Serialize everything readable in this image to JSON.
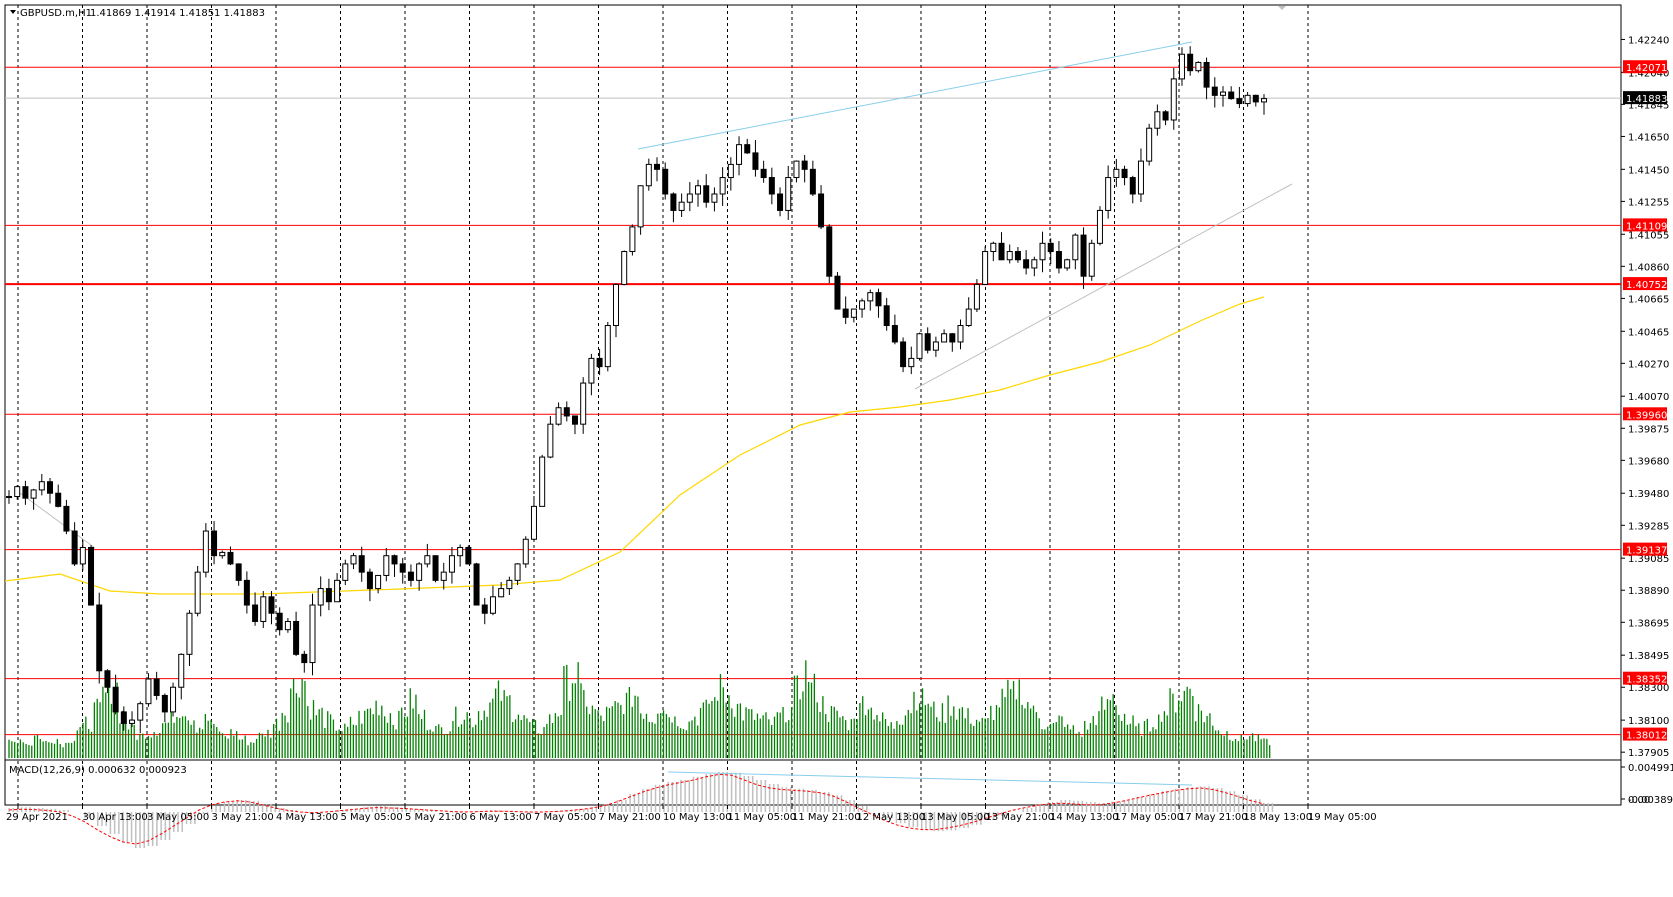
{
  "header": {
    "symbol": "GBPUSD.m,H1",
    "ohlc": "1.41869 1.41914 1.41851 1.41883"
  },
  "macd_header": "MACD(12,26,9) 0.000632 0.000923",
  "colors": {
    "level_line": "#ff0000",
    "level_label_bg": "#ff0000",
    "ma": "#ffd700",
    "volume": "#008000",
    "candle": "#000000",
    "trendline": "#87ceeb",
    "channel": "#c0c0c0",
    "macd_hist": "#c0c0c0",
    "macd_signal": "#ff0000",
    "grid": "#000000",
    "current_label_bg": "#000000"
  },
  "chart_data": {
    "type": "candlestick",
    "title": "GBPUSD.m,H1",
    "ylim": [
      1.379,
      1.4234
    ],
    "y_ticks": [
      "1.42240",
      "1.42040",
      "1.41845",
      "1.41650",
      "1.41450",
      "1.41255",
      "1.41055",
      "1.40860",
      "1.40665",
      "1.40465",
      "1.40270",
      "1.40070",
      "1.39875",
      "1.39680",
      "1.39480",
      "1.39285",
      "1.39085",
      "1.38890",
      "1.38695",
      "1.38495",
      "1.38300",
      "1.38100",
      "1.37905"
    ],
    "x_ticks": [
      "29 Apr 2021",
      "30 Apr 13:00",
      "3 May 05:00",
      "3 May 21:00",
      "4 May 13:00",
      "5 May 05:00",
      "5 May 21:00",
      "6 May 13:00",
      "7 May 05:00",
      "7 May 21:00",
      "10 May 13:00",
      "11 May 05:00",
      "11 May 21:00",
      "12 May 13:00",
      "13 May 05:00",
      "13 May 21:00",
      "14 May 13:00",
      "17 May 05:00",
      "17 May 21:00",
      "18 May 13:00",
      "19 May 05:00"
    ],
    "current_price": "1.41883",
    "levels": [
      "1.42071",
      "1.41109",
      "1.40752",
      "1.39960",
      "1.39137",
      "1.38352",
      "1.38012"
    ],
    "close_path": [
      1.3946,
      1.3952,
      1.3945,
      1.395,
      1.3955,
      1.3948,
      1.394,
      1.3925,
      1.3905,
      1.3915,
      1.388,
      1.384,
      1.383,
      1.3815,
      1.3808,
      1.381,
      1.382,
      1.3835,
      1.3825,
      1.3815,
      1.383,
      1.385,
      1.3875,
      1.39,
      1.3925,
      1.391,
      1.3912,
      1.3905,
      1.3895,
      1.388,
      1.387,
      1.3885,
      1.3875,
      1.3865,
      1.387,
      1.385,
      1.3845,
      1.388,
      1.389,
      1.3882,
      1.3895,
      1.3905,
      1.391,
      1.39,
      1.389,
      1.3898,
      1.391,
      1.3905,
      1.39,
      1.3895,
      1.3905,
      1.391,
      1.3895,
      1.39,
      1.391,
      1.3915,
      1.3905,
      1.388,
      1.3875,
      1.3885,
      1.389,
      1.3895,
      1.3905,
      1.392,
      1.394,
      1.397,
      1.399,
      1.4,
      1.3995,
      1.399,
      1.4015,
      1.403,
      1.4025,
      1.405,
      1.4075,
      1.4095,
      1.411,
      1.4135,
      1.4148,
      1.4145,
      1.413,
      1.412,
      1.4125,
      1.413,
      1.4135,
      1.4125,
      1.413,
      1.414,
      1.4148,
      1.416,
      1.4155,
      1.4145,
      1.414,
      1.413,
      1.412,
      1.414,
      1.415,
      1.4145,
      1.413,
      1.411,
      1.408,
      1.406,
      1.4055,
      1.406,
      1.4065,
      1.407,
      1.4062,
      1.405,
      1.404,
      1.4025,
      1.403,
      1.4045,
      1.4035,
      1.404,
      1.4045,
      1.404,
      1.405,
      1.406,
      1.4075,
      1.4095,
      1.41,
      1.409,
      1.4095,
      1.409,
      1.4085,
      1.409,
      1.41,
      1.4095,
      1.4085,
      1.409,
      1.4105,
      1.408,
      1.41,
      1.412,
      1.414,
      1.4145,
      1.414,
      1.413,
      1.415,
      1.417,
      1.418,
      1.4175,
      1.42,
      1.4215,
      1.4205,
      1.421,
      1.4195,
      1.419,
      1.4192,
      1.4188,
      1.4185,
      1.419,
      1.4186,
      1.4188
    ],
    "volume_path": [
      10,
      12,
      9,
      14,
      10,
      12,
      9,
      12,
      18,
      22,
      30,
      40,
      45,
      28,
      20,
      14,
      16,
      18,
      22,
      28,
      32,
      26,
      20,
      24,
      18,
      14,
      16,
      12,
      10,
      14,
      16,
      22,
      30,
      45,
      50,
      32,
      28,
      24,
      20,
      18,
      22,
      26,
      30,
      34,
      28,
      24,
      30,
      36,
      26,
      22,
      18,
      20,
      26,
      28,
      24,
      30,
      34,
      40,
      36,
      30,
      24,
      20,
      18,
      24,
      30,
      48,
      52,
      38,
      30,
      26,
      28,
      32,
      36,
      40,
      30,
      26,
      34,
      28,
      24,
      22,
      26,
      30,
      36,
      44,
      40,
      32,
      28,
      26,
      24,
      22,
      26,
      30,
      42,
      54,
      44,
      34,
      28,
      26,
      22,
      30,
      36,
      30,
      24,
      20,
      26,
      32,
      40,
      36,
      30,
      28,
      34,
      30,
      26,
      24,
      22,
      30,
      36,
      40,
      44,
      34,
      28,
      22,
      20,
      24,
      18,
      16,
      20,
      26,
      32,
      38,
      28,
      22,
      18,
      20,
      24,
      30,
      36,
      40,
      44,
      30,
      26,
      20,
      16,
      14,
      12,
      14,
      12,
      10
    ],
    "macd_hist_path": [
      0.1,
      0.12,
      0.1,
      0.08,
      0.05,
      0.0,
      -0.15,
      -0.35,
      -0.55,
      -0.75,
      -0.9,
      -0.85,
      -0.7,
      -0.5,
      -0.3,
      -0.05,
      0.15,
      0.25,
      0.3,
      0.28,
      0.2,
      0.1,
      0.05,
      -0.02,
      -0.05,
      0.0,
      0.05,
      0.08,
      0.12,
      0.15,
      0.12,
      0.1,
      0.08,
      0.05,
      0.0,
      -0.02,
      0.0,
      0.02,
      0.05,
      0.03,
      0.0,
      -0.02,
      0.0,
      0.02,
      0.05,
      0.08,
      0.12,
      0.18,
      0.3,
      0.45,
      0.58,
      0.68,
      0.75,
      0.8,
      0.88,
      0.95,
      1.0,
      0.98,
      0.9,
      0.8,
      0.7,
      0.62,
      0.58,
      0.55,
      0.5,
      0.42,
      0.3,
      0.15,
      0.0,
      -0.15,
      -0.28,
      -0.38,
      -0.45,
      -0.48,
      -0.46,
      -0.4,
      -0.32,
      -0.2,
      -0.1,
      0.0,
      0.1,
      0.18,
      0.25,
      0.3,
      0.28,
      0.25,
      0.22,
      0.26,
      0.3,
      0.38,
      0.45,
      0.52,
      0.58,
      0.62,
      0.64,
      0.6,
      0.52,
      0.42,
      0.32,
      0.22
    ],
    "macd_signal_path": [
      0.05,
      0.07,
      0.06,
      0.04,
      0.0,
      -0.1,
      -0.25,
      -0.45,
      -0.62,
      -0.75,
      -0.8,
      -0.72,
      -0.55,
      -0.35,
      -0.15,
      0.05,
      0.18,
      0.25,
      0.28,
      0.25,
      0.18,
      0.1,
      0.04,
      0.0,
      -0.02,
      0.0,
      0.03,
      0.06,
      0.09,
      0.11,
      0.1,
      0.09,
      0.07,
      0.05,
      0.03,
      0.01,
      0.0,
      0.01,
      0.02,
      0.02,
      0.01,
      0.0,
      0.0,
      0.01,
      0.03,
      0.06,
      0.1,
      0.16,
      0.26,
      0.38,
      0.5,
      0.6,
      0.68,
      0.74,
      0.8,
      0.88,
      0.94,
      0.92,
      0.8,
      0.68,
      0.6,
      0.56,
      0.54,
      0.52,
      0.48,
      0.4,
      0.26,
      0.1,
      -0.05,
      -0.2,
      -0.32,
      -0.4,
      -0.44,
      -0.44,
      -0.4,
      -0.34,
      -0.26,
      -0.16,
      -0.06,
      0.03,
      0.1,
      0.16,
      0.2,
      0.22,
      0.2,
      0.18,
      0.18,
      0.22,
      0.28,
      0.35,
      0.42,
      0.48,
      0.54,
      0.58,
      0.6,
      0.56,
      0.48,
      0.38,
      0.28,
      0.2
    ],
    "macd_ticks": [
      "0.004991",
      "0.00",
      "-0.00389"
    ]
  }
}
